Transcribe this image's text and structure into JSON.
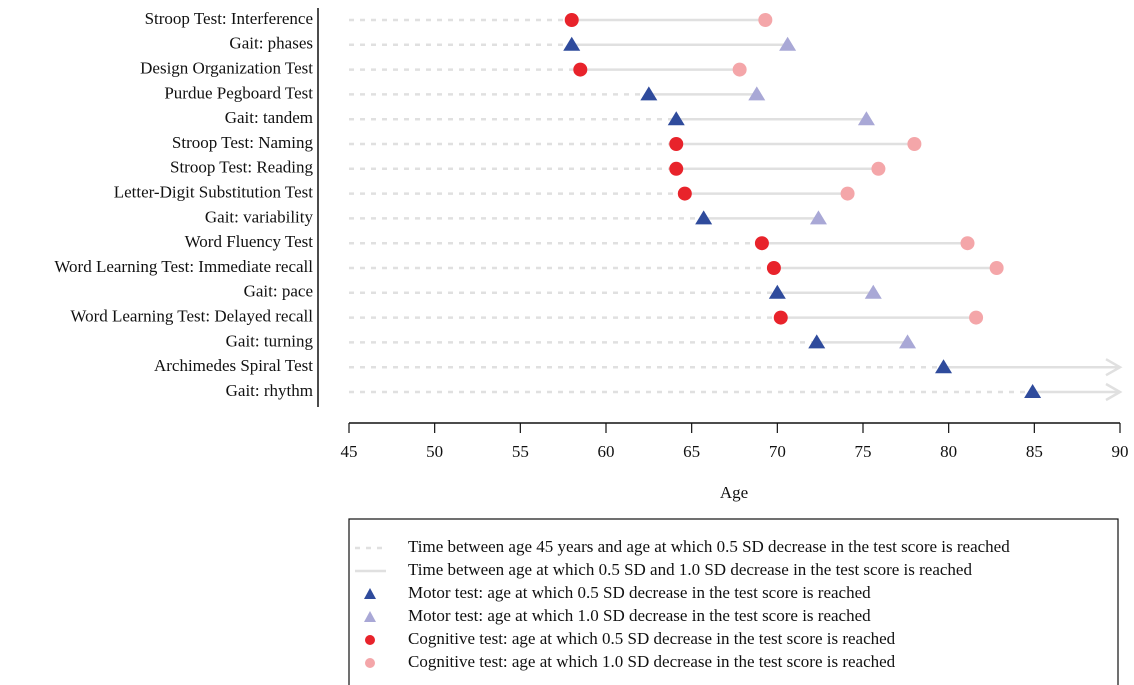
{
  "chart_data": {
    "type": "dumbbell",
    "categories": [
      "Stroop Test: Interference",
      "Gait: phases",
      "Design Organization Test",
      "Purdue Pegboard Test",
      "Gait: tandem",
      "Stroop Test: Naming",
      "Stroop Test: Reading",
      "Letter-Digit Substitution Test",
      "Gait: variability",
      "Word Fluency Test",
      "Word Learning Test: Immediate recall",
      "Gait: pace",
      "Word Learning Test: Delayed recall",
      "Gait: turning",
      "Archimedes Spiral Test",
      "Gait: rhythm"
    ],
    "series": [
      {
        "name": "Motor test: age at which 0.5 SD decrease in the test score is reached",
        "color": "#2f4b9c",
        "marker": "triangle",
        "values": [
          null,
          58.0,
          null,
          62.5,
          64.1,
          null,
          null,
          null,
          65.7,
          null,
          null,
          70.0,
          null,
          72.3,
          79.7,
          84.9
        ]
      },
      {
        "name": "Motor test: age at which 1.0 SD decrease in the test score is reached",
        "color": "#a9a8d6",
        "marker": "triangle",
        "values": [
          null,
          70.6,
          null,
          68.8,
          75.2,
          null,
          null,
          null,
          72.4,
          null,
          null,
          75.6,
          null,
          77.6,
          null,
          null
        ]
      },
      {
        "name": "Cognitive test: age at which 0.5 SD decrease in the test score is reached",
        "color": "#e8232b",
        "marker": "circle",
        "values": [
          58.0,
          null,
          58.5,
          null,
          null,
          64.1,
          64.1,
          64.6,
          null,
          69.1,
          69.8,
          null,
          70.2,
          null,
          null,
          null
        ]
      },
      {
        "name": "Cognitive test: age at which 1.0 SD decrease in the test score is reached",
        "color": "#f4a6a9",
        "marker": "circle",
        "values": [
          69.3,
          null,
          67.8,
          null,
          null,
          78.0,
          75.9,
          74.1,
          null,
          81.1,
          82.8,
          null,
          81.6,
          null,
          null,
          null
        ]
      }
    ],
    "line_legend": [
      {
        "name": "Time between age 45 years and age at which 0.5 SD decrease in the test score is reached",
        "style": "dashed"
      },
      {
        "name": "Time between age at which 0.5 SD and 1.0 SD decrease in the test score is reached",
        "style": "solid"
      }
    ],
    "line_color": "#e0e0e0",
    "x_label": "Age",
    "xlim": [
      45,
      90
    ],
    "xticks": [
      45,
      50,
      55,
      60,
      65,
      70,
      75,
      80,
      85,
      90
    ]
  }
}
